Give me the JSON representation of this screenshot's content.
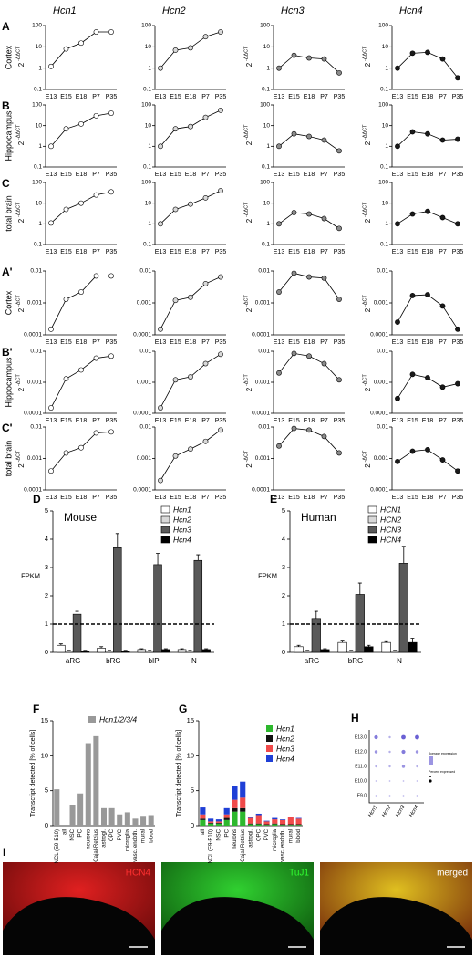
{
  "chart_data": [
    {
      "type": "line",
      "panel": "A",
      "row_label": "Cortex",
      "title": "Hcn1",
      "ylabel": "2",
      "ylabel_exponent": "-ΔΔCT",
      "categories": [
        "E13",
        "E15",
        "E18",
        "P7",
        "P35"
      ],
      "values": [
        1.2,
        8,
        15,
        50,
        50
      ],
      "color": "#ffffff",
      "log": true,
      "ylim": [
        0.1,
        100
      ],
      "yticks": [
        0.1,
        1,
        10,
        100
      ]
    },
    {
      "type": "line",
      "title": "Hcn2",
      "categories": [
        "E13",
        "E15",
        "E18",
        "P7",
        "P35"
      ],
      "values": [
        1,
        7,
        9,
        30,
        50
      ],
      "color": "#d9d9d9",
      "log": true,
      "ylim": [
        0.1,
        100
      ],
      "yticks": [
        0.1,
        1,
        10,
        100
      ]
    },
    {
      "type": "line",
      "title": "Hcn3",
      "ylabel": "2",
      "ylabel_exponent": "-ΔΔCT",
      "categories": [
        "E13",
        "E15",
        "E18",
        "P7",
        "P35"
      ],
      "values": [
        1,
        4,
        3,
        2.7,
        0.6
      ],
      "color": "#8c8c8c",
      "log": true,
      "ylim": [
        0.1,
        100
      ],
      "yticks": [
        0.1,
        1,
        10,
        100
      ]
    },
    {
      "type": "line",
      "title": "Hcn4",
      "ylabel": "2",
      "ylabel_exponent": "-ΔΔCT",
      "categories": [
        "E13",
        "E15",
        "E18",
        "P7",
        "P35"
      ],
      "values": [
        1,
        5,
        5.5,
        2.7,
        0.35
      ],
      "color": "#1a1a1a",
      "log": true,
      "ylim": [
        0.1,
        100
      ],
      "yticks": [
        0.1,
        1,
        10,
        100
      ]
    },
    {
      "type": "line",
      "panel": "B",
      "row_label": "Hippocampus",
      "ylabel": "2",
      "ylabel_exponent": "-ΔΔCT",
      "categories": [
        "E13",
        "E15",
        "E18",
        "P7",
        "P35"
      ],
      "values": [
        1,
        7,
        12,
        30,
        40
      ],
      "color": "#ffffff",
      "log": true,
      "ylim": [
        0.1,
        100
      ],
      "yticks": [
        0.1,
        1,
        10,
        100
      ]
    },
    {
      "type": "line",
      "categories": [
        "E13",
        "E15",
        "E18",
        "P7",
        "P35"
      ],
      "values": [
        1,
        7,
        9,
        25,
        55
      ],
      "color": "#d9d9d9",
      "log": true,
      "ylim": [
        0.1,
        100
      ],
      "yticks": [
        0.1,
        1,
        10,
        100
      ]
    },
    {
      "type": "line",
      "ylabel": "2",
      "ylabel_exponent": "-ΔΔCT",
      "categories": [
        "E13",
        "E15",
        "E18",
        "P7",
        "P35"
      ],
      "values": [
        1,
        4,
        3,
        2,
        0.6
      ],
      "color": "#8c8c8c",
      "log": true,
      "ylim": [
        0.1,
        100
      ],
      "yticks": [
        0.1,
        1,
        10,
        100
      ]
    },
    {
      "type": "line",
      "ylabel": "2",
      "ylabel_exponent": "-ΔΔCT",
      "categories": [
        "E13",
        "E15",
        "E18",
        "P7",
        "P35"
      ],
      "values": [
        1,
        5,
        4,
        2,
        2.2
      ],
      "color": "#1a1a1a",
      "log": true,
      "ylim": [
        0.1,
        100
      ],
      "yticks": [
        0.1,
        1,
        10,
        100
      ]
    },
    {
      "type": "line",
      "panel": "C",
      "row_label": "total brain",
      "ylabel": "2",
      "ylabel_exponent": "-ΔΔCT",
      "categories": [
        "E13",
        "E15",
        "E18",
        "P7",
        "P35"
      ],
      "values": [
        1.1,
        5,
        10,
        25,
        35
      ],
      "color": "#ffffff",
      "log": true,
      "ylim": [
        0.1,
        100
      ],
      "yticks": [
        0.1,
        1,
        10,
        100
      ]
    },
    {
      "type": "line",
      "categories": [
        "E13",
        "E15",
        "E18",
        "P7",
        "P35"
      ],
      "values": [
        1,
        5,
        9,
        18,
        40
      ],
      "color": "#d9d9d9",
      "log": true,
      "ylim": [
        0.1,
        100
      ],
      "yticks": [
        0.1,
        1,
        10,
        100
      ]
    },
    {
      "type": "line",
      "ylabel": "2",
      "ylabel_exponent": "-ΔΔCT",
      "categories": [
        "E13",
        "E15",
        "E18",
        "P7",
        "P35"
      ],
      "values": [
        1,
        3.5,
        3,
        1.8,
        0.6
      ],
      "color": "#8c8c8c",
      "log": true,
      "ylim": [
        0.1,
        100
      ],
      "yticks": [
        0.1,
        1,
        10,
        100
      ]
    },
    {
      "type": "line",
      "ylabel": "2",
      "ylabel_exponent": "-ΔΔCT",
      "categories": [
        "E13",
        "E15",
        "E18",
        "P7",
        "P35"
      ],
      "values": [
        1,
        3,
        4,
        2,
        1
      ],
      "color": "#1a1a1a",
      "log": true,
      "ylim": [
        0.1,
        100
      ],
      "yticks": [
        0.1,
        1,
        10,
        100
      ]
    },
    {
      "type": "line",
      "panel": "A'",
      "row_label": "Cortex",
      "ylabel": "2",
      "ylabel_exponent": "-ΔCT",
      "categories": [
        "E13",
        "E15",
        "E18",
        "P7",
        "P35"
      ],
      "values": [
        0.00015,
        0.0013,
        0.0022,
        0.007,
        0.007
      ],
      "color": "#ffffff",
      "log": true,
      "ylim": [
        0.0001,
        0.01
      ],
      "yticks": [
        0.0001,
        0.001,
        0.01
      ]
    },
    {
      "type": "line",
      "categories": [
        "E13",
        "E15",
        "E18",
        "P7",
        "P35"
      ],
      "values": [
        0.00015,
        0.0012,
        0.0015,
        0.004,
        0.0065
      ],
      "color": "#d9d9d9",
      "log": true,
      "ylim": [
        0.0001,
        0.01
      ],
      "yticks": [
        0.0001,
        0.001,
        0.01
      ]
    },
    {
      "type": "line",
      "ylabel": "2",
      "ylabel_exponent": "-ΔCT",
      "categories": [
        "E13",
        "E15",
        "E18",
        "P7",
        "P35"
      ],
      "values": [
        0.0022,
        0.0085,
        0.0065,
        0.006,
        0.0013
      ],
      "color": "#8c8c8c",
      "log": true,
      "ylim": [
        0.0001,
        0.01
      ],
      "yticks": [
        0.0001,
        0.001,
        0.01
      ]
    },
    {
      "type": "line",
      "ylabel": "2",
      "ylabel_exponent": "-ΔCT",
      "categories": [
        "E13",
        "E15",
        "E18",
        "P7",
        "P35"
      ],
      "values": [
        0.00025,
        0.0017,
        0.0018,
        0.0008,
        0.00015
      ],
      "color": "#1a1a1a",
      "log": true,
      "ylim": [
        0.0001,
        0.01
      ],
      "yticks": [
        0.0001,
        0.001,
        0.01
      ]
    },
    {
      "type": "line",
      "panel": "B'",
      "row_label": "Hippocampus",
      "ylabel": "2",
      "ylabel_exponent": "-ΔCT",
      "categories": [
        "E13",
        "E15",
        "E18",
        "P7",
        "P35"
      ],
      "values": [
        0.00015,
        0.0013,
        0.0025,
        0.006,
        0.007
      ],
      "color": "#ffffff",
      "log": true,
      "ylim": [
        0.0001,
        0.01
      ],
      "yticks": [
        0.0001,
        0.001,
        0.01
      ]
    },
    {
      "type": "line",
      "categories": [
        "E13",
        "E15",
        "E18",
        "P7",
        "P35"
      ],
      "values": [
        0.00015,
        0.0012,
        0.0015,
        0.004,
        0.008
      ],
      "color": "#d9d9d9",
      "log": true,
      "ylim": [
        0.0001,
        0.01
      ],
      "yticks": [
        0.0001,
        0.001,
        0.01
      ]
    },
    {
      "type": "line",
      "ylabel": "2",
      "ylabel_exponent": "-ΔCT",
      "categories": [
        "E13",
        "E15",
        "E18",
        "P7",
        "P35"
      ],
      "values": [
        0.002,
        0.0085,
        0.007,
        0.004,
        0.0012
      ],
      "color": "#8c8c8c",
      "log": true,
      "ylim": [
        0.0001,
        0.01
      ],
      "yticks": [
        0.0001,
        0.001,
        0.01
      ]
    },
    {
      "type": "line",
      "ylabel": "2",
      "ylabel_exponent": "-ΔCT",
      "categories": [
        "E13",
        "E15",
        "E18",
        "P7",
        "P35"
      ],
      "values": [
        0.0003,
        0.0018,
        0.0014,
        0.0007,
        0.0009
      ],
      "color": "#1a1a1a",
      "log": true,
      "ylim": [
        0.0001,
        0.01
      ],
      "yticks": [
        0.0001,
        0.001,
        0.01
      ]
    },
    {
      "type": "line",
      "panel": "C'",
      "row_label": "total brain",
      "ylabel": "2",
      "ylabel_exponent": "-ΔCT",
      "categories": [
        "E13",
        "E15",
        "E18",
        "P7",
        "P35"
      ],
      "values": [
        0.0004,
        0.0015,
        0.0022,
        0.0065,
        0.007
      ],
      "color": "#ffffff",
      "log": true,
      "ylim": [
        0.0001,
        0.01
      ],
      "yticks": [
        0.0001,
        0.001,
        0.01
      ]
    },
    {
      "type": "line",
      "categories": [
        "E13",
        "E15",
        "E18",
        "P7",
        "P35"
      ],
      "values": [
        0.0002,
        0.0012,
        0.002,
        0.0035,
        0.008
      ],
      "color": "#d9d9d9",
      "log": true,
      "ylim": [
        0.0001,
        0.01
      ],
      "yticks": [
        0.0001,
        0.001,
        0.01
      ]
    },
    {
      "type": "line",
      "ylabel": "2",
      "ylabel_exponent": "-ΔCT",
      "categories": [
        "E13",
        "E15",
        "E18",
        "P7",
        "P35"
      ],
      "values": [
        0.0025,
        0.009,
        0.008,
        0.005,
        0.0015
      ],
      "color": "#8c8c8c",
      "log": true,
      "ylim": [
        0.0001,
        0.01
      ],
      "yticks": [
        0.0001,
        0.001,
        0.01
      ]
    },
    {
      "type": "line",
      "ylabel": "2",
      "ylabel_exponent": "-ΔCT",
      "categories": [
        "E13",
        "E15",
        "E18",
        "P7",
        "P35"
      ],
      "values": [
        0.0008,
        0.0017,
        0.0019,
        0.0009,
        0.0004
      ],
      "color": "#1a1a1a",
      "log": true,
      "ylim": [
        0.0001,
        0.01
      ],
      "yticks": [
        0.0001,
        0.001,
        0.01
      ]
    },
    {
      "type": "bar",
      "panel": "D",
      "title": "Mouse",
      "ylabel": "FPKM",
      "categories": [
        "aRG",
        "bRG",
        "bIP",
        "N"
      ],
      "series": [
        {
          "name": "Hcn1",
          "color": "#ffffff",
          "values": [
            0.25,
            0.15,
            0.1,
            0.1
          ],
          "errors": [
            0.05,
            0.05,
            0.03,
            0.03
          ]
        },
        {
          "name": "Hcn2",
          "color": "#d9d9d9",
          "values": [
            0.05,
            0.05,
            0.05,
            0.05
          ],
          "errors": [
            0.02,
            0.02,
            0.02,
            0.02
          ]
        },
        {
          "name": "Hcn3",
          "color": "#595959",
          "values": [
            1.35,
            3.7,
            3.1,
            3.25
          ],
          "errors": [
            0.1,
            0.5,
            0.4,
            0.2
          ]
        },
        {
          "name": "Hcn4",
          "color": "#000000",
          "values": [
            0.05,
            0.05,
            0.1,
            0.1
          ],
          "errors": [
            0.02,
            0.02,
            0.03,
            0.03
          ]
        }
      ],
      "ref_line": 1,
      "ylim": [
        0,
        5
      ],
      "yticks": [
        0,
        1,
        2,
        3,
        4,
        5
      ]
    },
    {
      "type": "bar",
      "panel": "E",
      "title": "Human",
      "ylabel": "FPKM",
      "categories": [
        "aRG",
        "bRG",
        "N"
      ],
      "series": [
        {
          "name": "HCN1",
          "color": "#ffffff",
          "values": [
            0.2,
            0.35,
            0.35
          ],
          "errors": [
            0.05,
            0.05,
            0.03
          ]
        },
        {
          "name": "HCN2",
          "color": "#d9d9d9",
          "values": [
            0.05,
            0.05,
            0.05
          ],
          "errors": [
            0.02,
            0.02,
            0.02
          ]
        },
        {
          "name": "HCN3",
          "color": "#595959",
          "values": [
            1.2,
            2.05,
            3.15
          ],
          "errors": [
            0.25,
            0.4,
            0.6
          ]
        },
        {
          "name": "HCN4",
          "color": "#000000",
          "values": [
            0.1,
            0.2,
            0.35
          ],
          "errors": [
            0.03,
            0.05,
            0.15
          ]
        }
      ],
      "ref_line": 1,
      "ylim": [
        0,
        5
      ],
      "yticks": [
        0,
        1,
        2,
        3,
        4,
        5
      ]
    },
    {
      "type": "bar",
      "panel": "F",
      "ylabel": "Transcript detected [% of cells]",
      "categories": [
        "NCL (E9-E10)",
        "all",
        "NSC",
        "IPC",
        "neurons",
        "Cajal-Retzius",
        "astrogl.",
        "OPC",
        "PVC",
        "microglia",
        "vasc. endoth.",
        "mural",
        "blood"
      ],
      "series": [
        {
          "name": "Hcn1/2/3/4",
          "color": "#999999",
          "values": [
            5.2,
            0,
            3,
            4.6,
            11.8,
            12.8,
            2.5,
            2.5,
            1.6,
            1.9,
            1,
            1.4,
            1.5
          ]
        }
      ],
      "ylim": [
        0,
        15
      ],
      "yticks": [
        0,
        5,
        10,
        15
      ]
    },
    {
      "type": "stacked_bar",
      "panel": "G",
      "ylabel": "Transcript detected [% of cells]",
      "categories": [
        "all",
        "NCL (E9-E10)",
        "NSC",
        "IPC",
        "neurons",
        "Cajal-Retzius",
        "astrogl.",
        "OPC",
        "PVC",
        "microglia",
        "vasc. endoth.",
        "mural",
        "blood"
      ],
      "series": [
        {
          "name": "Hcn1",
          "color": "#2db82d",
          "values": [
            0.8,
            0.3,
            0.3,
            0.8,
            2,
            2,
            0.2,
            0.2,
            0.1,
            0.2,
            0.1,
            0.1,
            0.1
          ]
        },
        {
          "name": "Hcn2",
          "color": "#111111",
          "values": [
            0.2,
            0.1,
            0.1,
            0.3,
            0.5,
            0.5,
            0.1,
            0.1,
            0.1,
            0.1,
            0.1,
            0.1,
            0.1
          ]
        },
        {
          "name": "Hcn3",
          "color": "#f04a4a",
          "values": [
            0.6,
            0.2,
            0.2,
            0.5,
            1.2,
            1.5,
            0.8,
            1.2,
            0.4,
            0.6,
            0.6,
            1,
            0.8
          ]
        },
        {
          "name": "Hcn4",
          "color": "#1f3fd6",
          "values": [
            1,
            0.4,
            0.3,
            0.9,
            2,
            2.3,
            0.2,
            0.2,
            0.1,
            0.2,
            0.1,
            0.1,
            0.1
          ]
        }
      ],
      "ylim": [
        0,
        15
      ],
      "yticks": [
        0,
        5,
        10,
        15
      ]
    },
    {
      "type": "dot",
      "panel": "H",
      "categories": [
        "Hcn1",
        "Hcn2",
        "Hcn3",
        "Hcn4"
      ],
      "rows": [
        "E13.0",
        "E12.0",
        "E11.0",
        "E10.0",
        "E9.0"
      ],
      "values": [
        [
          3,
          1,
          4,
          4
        ],
        [
          2,
          1,
          3,
          2
        ],
        [
          1,
          1,
          2,
          1
        ],
        [
          0.5,
          0.5,
          0.5,
          0.5
        ],
        [
          0.5,
          0.5,
          0.5,
          0.5
        ]
      ],
      "color": "#5a4fcf",
      "legend": [
        "Average expression",
        "Percent expressed"
      ]
    }
  ],
  "images": {
    "panel": "I",
    "labels": [
      "HCN4",
      "TuJ1",
      "merged"
    ]
  }
}
